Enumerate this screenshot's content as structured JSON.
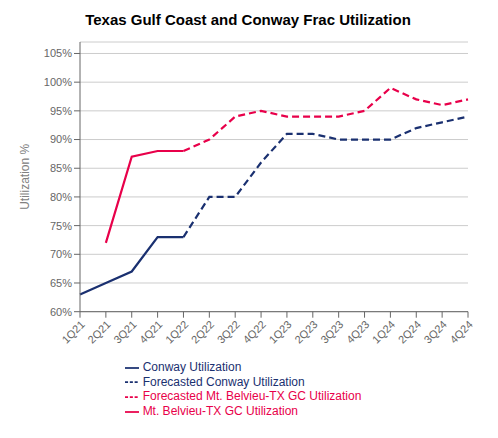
{
  "chart_data": {
    "type": "line",
    "title": "Texas Gulf Coast and Conway Frac Utilization",
    "y_label": "Utilization %",
    "categories": [
      "1Q21",
      "2Q21",
      "3Q21",
      "4Q21",
      "1Q22",
      "2Q22",
      "3Q22",
      "4Q22",
      "1Q23",
      "2Q23",
      "3Q23",
      "4Q23",
      "1Q24",
      "2Q24",
      "3Q24",
      "4Q24"
    ],
    "series": [
      {
        "name": "Conway Utilization",
        "color": "#1a3070",
        "line_style": "solid",
        "values": [
          63,
          65,
          67,
          73,
          73,
          null,
          null,
          null,
          null,
          null,
          null,
          null,
          null,
          null,
          null,
          null
        ]
      },
      {
        "name": "Mt. Belvieu-TX GC Utilization",
        "color": "#e8004a",
        "line_style": "solid",
        "values": [
          null,
          72,
          87,
          88,
          88,
          null,
          null,
          null,
          null,
          null,
          null,
          null,
          null,
          null,
          null,
          null
        ]
      },
      {
        "name": "Forecasted Conway Utilization",
        "color": "#1a3070",
        "line_style": "dashed",
        "values": [
          null,
          null,
          null,
          null,
          73,
          80,
          80,
          86,
          91,
          91,
          90,
          90,
          90,
          92,
          93,
          94
        ]
      },
      {
        "name": "Forecasted Mt. Belvieu-TX GC Utilization",
        "color": "#e8004a",
        "line_style": "dashed",
        "values": [
          null,
          null,
          null,
          null,
          88,
          90,
          94,
          95,
          94,
          94,
          94,
          95,
          99,
          97,
          96,
          97
        ]
      }
    ],
    "ylim": [
      60,
      107
    ],
    "yticks": [
      {
        "value": 60,
        "label": "60%"
      },
      {
        "value": 65,
        "label": "65%"
      },
      {
        "value": 70,
        "label": "70%"
      },
      {
        "value": 75,
        "label": "75%"
      },
      {
        "value": 80,
        "label": "80%"
      },
      {
        "value": 85,
        "label": "85%"
      },
      {
        "value": 90,
        "label": "90%"
      },
      {
        "value": 95,
        "label": "95%"
      },
      {
        "value": 100,
        "label": "100%"
      },
      {
        "value": 105,
        "label": "105%"
      }
    ],
    "grid": true,
    "legend": "bottom"
  }
}
